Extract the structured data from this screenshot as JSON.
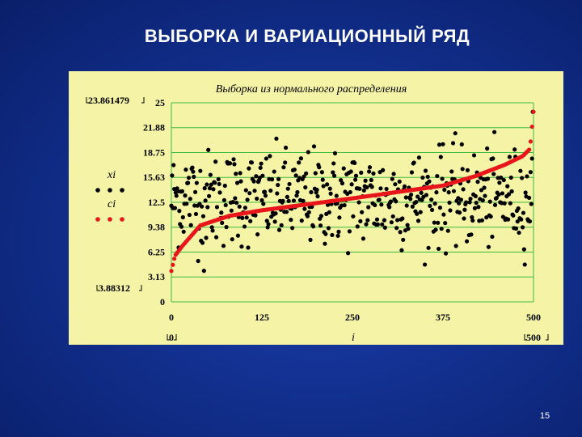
{
  "slide": {
    "title": "ВЫБОРКА И ВАРИАЦИОННЫЙ РЯД",
    "page_number": "15"
  },
  "chart_data": {
    "type": "scatter",
    "title": "Выборка из нормального распределения",
    "xlabel": "i",
    "x_range": [
      0,
      500
    ],
    "ylim": [
      0,
      25
    ],
    "x_ticks": [
      "0",
      "125",
      "250",
      "375",
      "500"
    ],
    "y_ticks": [
      "0",
      "3.13",
      "6.25",
      "9.38",
      "12.5",
      "15.63",
      "18.75",
      "21.88",
      "25"
    ],
    "range_labels": {
      "y_max": "23.861479",
      "y_min": "3.88312",
      "x_min": "0",
      "x_max": "500"
    },
    "grid": true,
    "legend_placement": "left",
    "colors": {
      "background": "#f4f3a6",
      "grid": "#3dbb3d",
      "sample_points": "#000000",
      "variation_series": "#e8161b",
      "slide_background": "#12308f"
    },
    "series": [
      {
        "name": "xi",
        "kind": "sample_points",
        "n": 500,
        "mean": 13.0,
        "sd": 3.0,
        "min": 3.88312,
        "max": 23.861479,
        "note_values": [
          {
            "x": 45,
            "y": 3.9
          },
          {
            "x": 20,
            "y": 16.6
          },
          {
            "x": 250,
            "y": 17.5
          },
          {
            "x": 375,
            "y": 19.8
          },
          {
            "x": 500,
            "y": 23.86
          }
        ]
      },
      {
        "name": "ci",
        "kind": "variation_series",
        "n": 500,
        "min": 3.88312,
        "max": 23.861479,
        "quantiles": [
          {
            "x": 0,
            "y": 3.88
          },
          {
            "x": 5,
            "y": 5.8
          },
          {
            "x": 15,
            "y": 7.0
          },
          {
            "x": 40,
            "y": 9.6
          },
          {
            "x": 80,
            "y": 10.8
          },
          {
            "x": 125,
            "y": 11.5
          },
          {
            "x": 250,
            "y": 13.0
          },
          {
            "x": 375,
            "y": 14.6
          },
          {
            "x": 420,
            "y": 15.8
          },
          {
            "x": 460,
            "y": 17.2
          },
          {
            "x": 485,
            "y": 18.3
          },
          {
            "x": 495,
            "y": 19.2
          },
          {
            "x": 500,
            "y": 23.86
          }
        ]
      }
    ]
  }
}
